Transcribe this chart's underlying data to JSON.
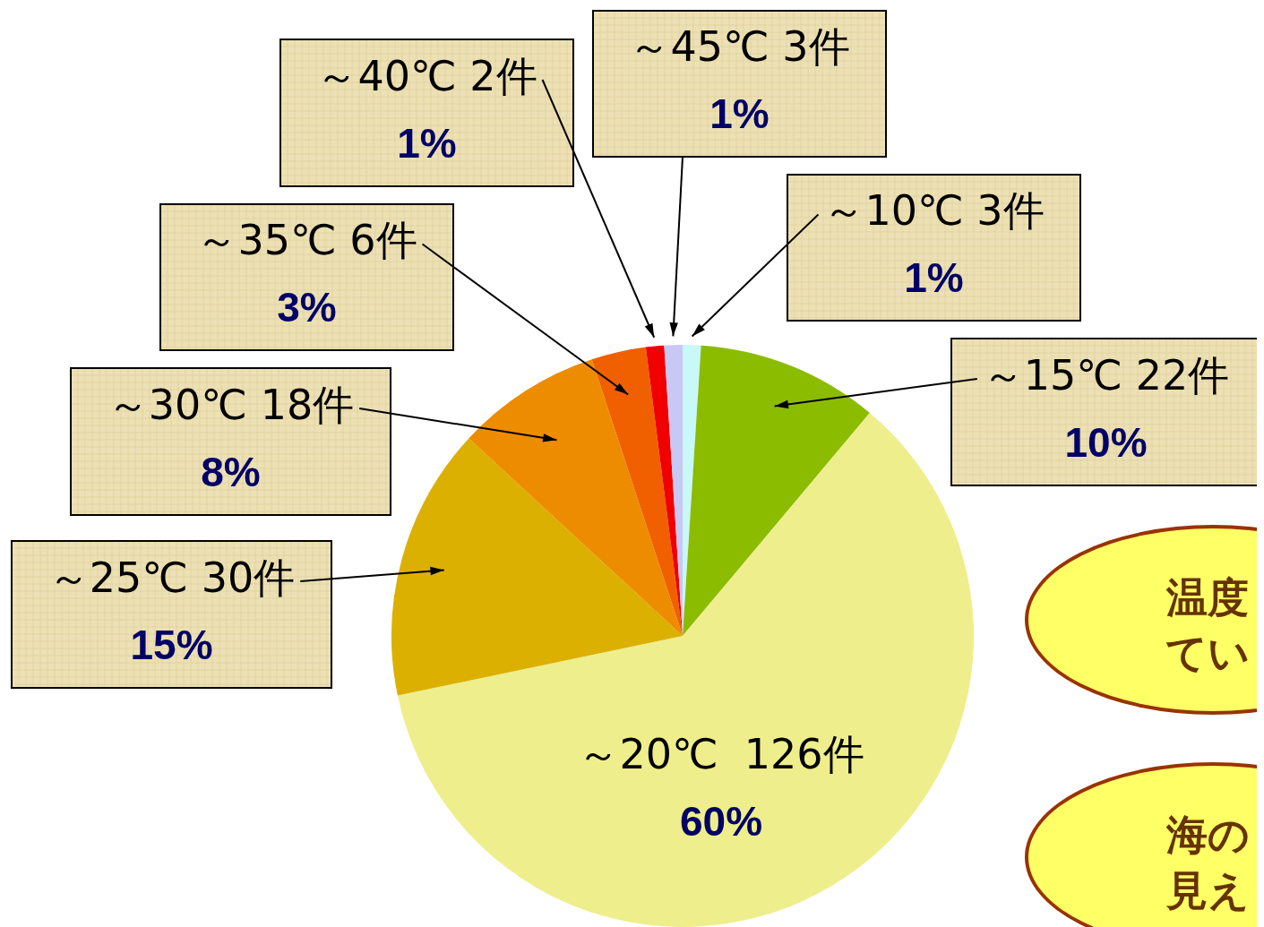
{
  "chart_data": {
    "type": "pie",
    "categories": [
      "～10℃ 3件",
      "～15℃ 22件",
      "～20℃  126件",
      "～25℃ 30件",
      "～30℃ 18件",
      "～35℃ 6件",
      "～40℃ 2件",
      "～45℃ 3件"
    ],
    "values": [
      1,
      10,
      60,
      15,
      8,
      3,
      1,
      1
    ],
    "value_labels": [
      "1%",
      "10%",
      "60%",
      "15%",
      "8%",
      "3%",
      "1%",
      "1%"
    ],
    "colors": [
      "#c8f8f8",
      "#8cbc00",
      "#eeee8c",
      "#dcb000",
      "#ee8c00",
      "#f06000",
      "#f00000",
      "#c8c8f4"
    ],
    "legend": false,
    "annotations": [
      "温度てい",
      "海の見え"
    ]
  }
}
